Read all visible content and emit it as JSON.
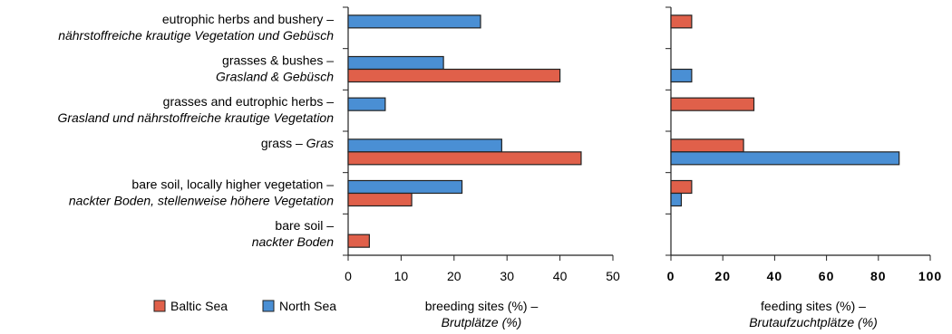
{
  "categories": [
    {
      "en": "eutrophic herbs and bushery –",
      "de": "nährstoffreiche krautige Vegetation und Gebüsch"
    },
    {
      "en": "grasses & bushes –",
      "de": "Grasland & Gebüsch"
    },
    {
      "en": "grasses and eutrophic herbs –",
      "de": "Grasland und nährstoffreiche krautige Vegetation"
    },
    {
      "en": "grass – ",
      "de": "Gras"
    },
    {
      "en": "bare soil, locally higher vegetation –",
      "de": "nackter Boden, stellenweise höhere Vegetation"
    },
    {
      "en": "bare soil –",
      "de": "nackter Boden"
    }
  ],
  "legend": [
    {
      "label": "Baltic Sea",
      "color": "#e0604a"
    },
    {
      "label": "North Sea",
      "color": "#4a8fd4"
    }
  ],
  "chart_data": [
    {
      "type": "bar",
      "orientation": "horizontal",
      "categories": [
        "eutrophic herbs and bushery – nährstoffreiche krautige Vegetation und Gebüsch",
        "grasses & bushes – Grasland & Gebüsch",
        "grasses and eutrophic herbs – Grasland und nährstoffreiche krautige Vegetation",
        "grass – Gras",
        "bare soil, locally higher vegetation – nackter Boden, stellenweise höhere Vegetation",
        "bare soil – nackter Boden"
      ],
      "series": [
        {
          "name": "North Sea",
          "color": "#4a8fd4",
          "values": [
            25,
            18,
            7,
            29,
            21.5,
            0
          ]
        },
        {
          "name": "Baltic Sea",
          "color": "#e0604a",
          "values": [
            0,
            40,
            0,
            44,
            12,
            4
          ]
        }
      ],
      "xlim": [
        0,
        50
      ],
      "xticks": [
        0,
        10,
        20,
        30,
        40,
        50
      ],
      "xlabel": "breeding sites (%) –",
      "xlabel_de": "Brutplätze (%)",
      "grid": false
    },
    {
      "type": "bar",
      "orientation": "horizontal",
      "categories": [
        "eutrophic herbs and bushery – nährstoffreiche krautige Vegetation und Gebüsch",
        "grasses & bushes – Grasland & Gebüsch",
        "grasses and eutrophic herbs – Grasland und nährstoffreiche krautige Vegetation",
        "grass – Gras",
        "bare soil, locally higher vegetation – nackter Boden, stellenweise höhere Vegetation",
        "bare soil – nackter Boden"
      ],
      "series": [
        {
          "name": "Baltic Sea",
          "color": "#e0604a",
          "values": [
            8,
            0,
            32,
            28,
            8,
            0
          ]
        },
        {
          "name": "North Sea",
          "color": "#4a8fd4",
          "values": [
            0,
            8,
            0,
            88,
            4,
            0
          ]
        }
      ],
      "xlim": [
        0,
        100
      ],
      "xticks": [
        0,
        20,
        40,
        60,
        80,
        100
      ],
      "xlabel": "feeding sites (%) –",
      "xlabel_de": "Brutaufzuchtplätze (%)",
      "grid": false
    }
  ]
}
